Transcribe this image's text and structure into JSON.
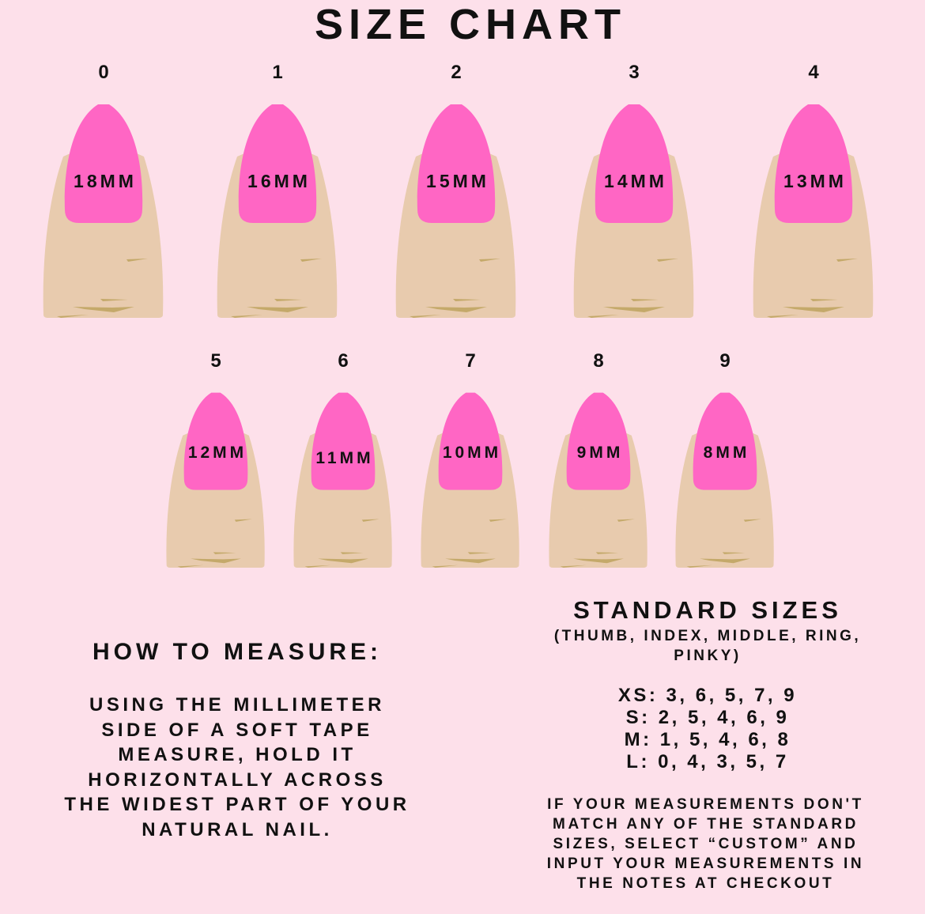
{
  "title": "SIZE CHART",
  "colors": {
    "background": "#fde0ea",
    "nail": "#ff66c4",
    "finger": "#e8cbae",
    "crease": "#c4a96a"
  },
  "sizes": [
    {
      "size": "0",
      "width": "18MM"
    },
    {
      "size": "1",
      "width": "16MM"
    },
    {
      "size": "2",
      "width": "15MM"
    },
    {
      "size": "3",
      "width": "14MM"
    },
    {
      "size": "4",
      "width": "13MM"
    },
    {
      "size": "5",
      "width": "12MM"
    },
    {
      "size": "6",
      "width": "11MM"
    },
    {
      "size": "7",
      "width": "10MM"
    },
    {
      "size": "8",
      "width": "9MM"
    },
    {
      "size": "9",
      "width": "8MM"
    }
  ],
  "how_to_measure": {
    "heading": "HOW TO MEASURE:",
    "lines": [
      "USING THE MILLIMETER",
      "SIDE OF A SOFT TAPE",
      "MEASURE, HOLD IT",
      "HORIZONTALLY ACROSS",
      "THE WIDEST PART OF YOUR",
      "NATURAL NAIL."
    ]
  },
  "standard_sizes": {
    "heading": "STANDARD SIZES",
    "subheading": "(THUMB, INDEX, MIDDLE, RING, PINKY)",
    "rows": [
      "XS: 3, 6, 5, 7, 9",
      "S: 2, 5, 4, 6, 9",
      "M: 1, 5, 4, 6, 8",
      "L: 0, 4, 3, 5, 7"
    ],
    "note_lines": [
      "IF YOUR MEASUREMENTS DON'T",
      "MATCH ANY OF THE STANDARD",
      "SIZES, SELECT “CUSTOM” AND",
      "INPUT YOUR MEASUREMENTS IN",
      "THE NOTES AT CHECKOUT"
    ]
  }
}
